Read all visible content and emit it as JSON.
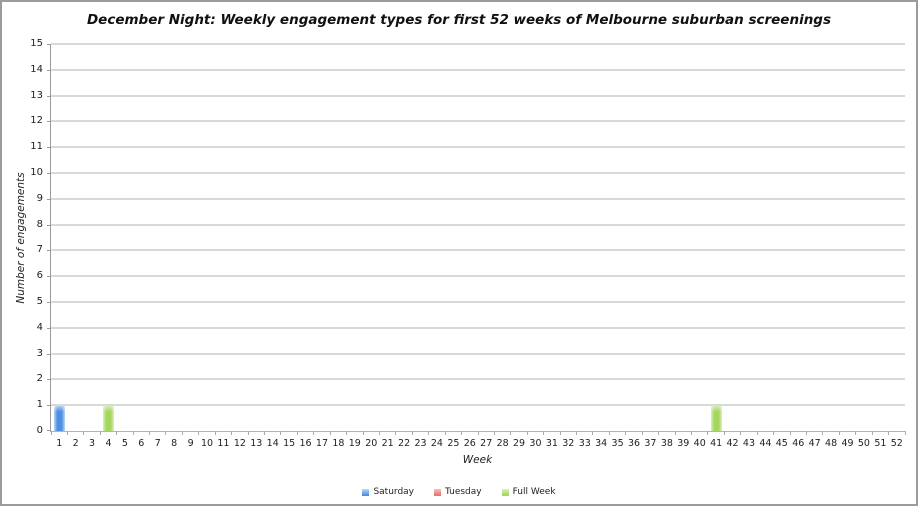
{
  "chart_data": {
    "type": "bar",
    "title": "December Night: Weekly engagement types for first 52 weeks of Melbourne suburban screenings",
    "xlabel": "Week",
    "ylabel": "Number of engagements",
    "ylim": [
      0,
      15
    ],
    "y_tick_step": 1,
    "grid": true,
    "legend_position": "bottom",
    "categories": [
      1,
      2,
      3,
      4,
      5,
      6,
      7,
      8,
      9,
      10,
      11,
      12,
      13,
      14,
      15,
      16,
      17,
      18,
      19,
      20,
      21,
      22,
      23,
      24,
      25,
      26,
      27,
      28,
      29,
      30,
      31,
      32,
      33,
      34,
      35,
      36,
      37,
      38,
      39,
      40,
      41,
      42,
      43,
      44,
      45,
      46,
      47,
      48,
      49,
      50,
      51,
      52
    ],
    "series": [
      {
        "name": "Saturday",
        "color": "#4f90e2",
        "color_light": "#bcd8f7",
        "values": [
          1,
          0,
          0,
          0,
          0,
          0,
          0,
          0,
          0,
          0,
          0,
          0,
          0,
          0,
          0,
          0,
          0,
          0,
          0,
          0,
          0,
          0,
          0,
          0,
          0,
          0,
          0,
          0,
          0,
          0,
          0,
          0,
          0,
          0,
          0,
          0,
          0,
          0,
          0,
          0,
          0,
          0,
          0,
          0,
          0,
          0,
          0,
          0,
          0,
          0,
          0,
          0
        ]
      },
      {
        "name": "Tuesday",
        "color": "#e9756c",
        "color_light": "#f6c3be",
        "values": [
          0,
          0,
          0,
          0,
          0,
          0,
          0,
          0,
          0,
          0,
          0,
          0,
          0,
          0,
          0,
          0,
          0,
          0,
          0,
          0,
          0,
          0,
          0,
          0,
          0,
          0,
          0,
          0,
          0,
          0,
          0,
          0,
          0,
          0,
          0,
          0,
          0,
          0,
          0,
          0,
          0,
          0,
          0,
          0,
          0,
          0,
          0,
          0,
          0,
          0,
          0,
          0
        ]
      },
      {
        "name": "Full Week",
        "color": "#a5d75f",
        "color_light": "#dcf0ba",
        "values": [
          0,
          0,
          0,
          1,
          0,
          0,
          0,
          0,
          0,
          0,
          0,
          0,
          0,
          0,
          0,
          0,
          0,
          0,
          0,
          0,
          0,
          0,
          0,
          0,
          0,
          0,
          0,
          0,
          0,
          0,
          0,
          0,
          0,
          0,
          0,
          0,
          0,
          0,
          0,
          0,
          1,
          0,
          0,
          0,
          0,
          0,
          0,
          0,
          0,
          0,
          0,
          0
        ]
      }
    ]
  }
}
